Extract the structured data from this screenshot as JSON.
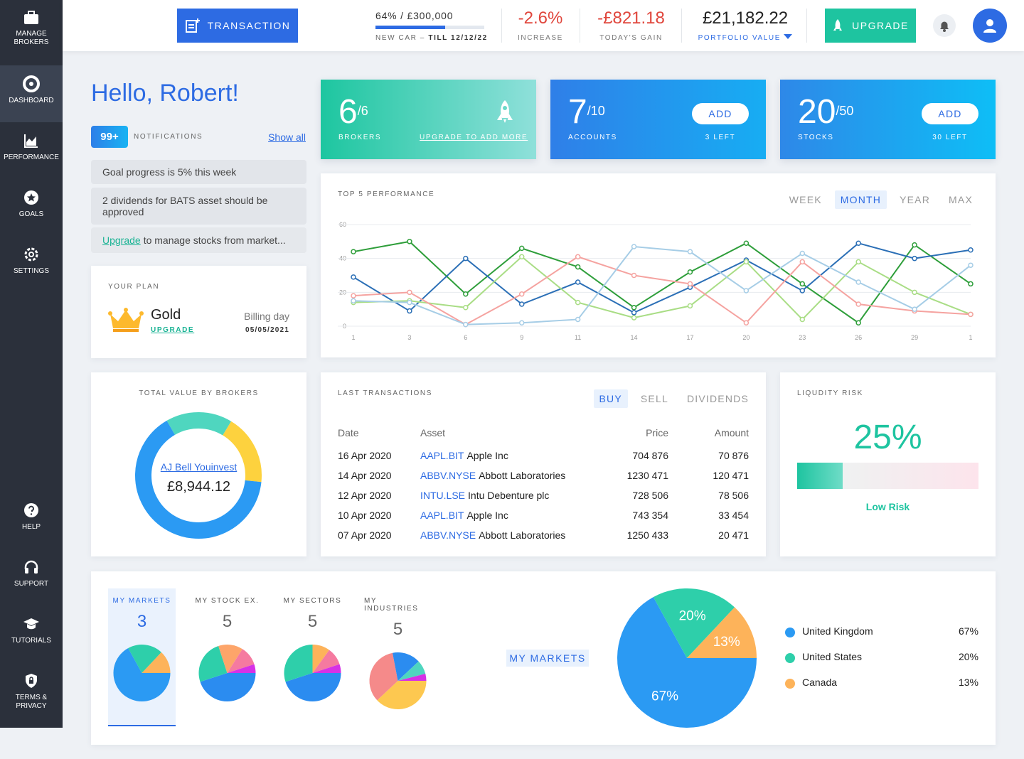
{
  "sidebar": {
    "items": [
      "MANAGE BROKERS",
      "DASHBOARD",
      "PERFORMANCE",
      "GOALS",
      "SETTINGS",
      "HELP",
      "SUPPORT",
      "TUTORIALS",
      "TERMS & PRIVACY"
    ],
    "active": 1
  },
  "topbar": {
    "transaction_button": "TRANSACTION",
    "goal": {
      "progress": 64,
      "progress_label": "64%",
      "target": "/ £300,000",
      "name": "NEW CAR –",
      "deadline": "TILL 12/12/22"
    },
    "stats": [
      {
        "value": "-2.6%",
        "label": "INCREASE"
      },
      {
        "value": "-£821.18",
        "label": "TODAY'S GAIN"
      },
      {
        "value": "£21,182.22",
        "label": "PORTFOLIO VALUE"
      }
    ],
    "upgrade_button": "UPGRADE"
  },
  "greeting": "Hello, Robert!",
  "notifications": {
    "badge": "99+",
    "title": "NOTIFICATIONS",
    "show_all": "Show all",
    "items": [
      "Goal progress is 5% this week",
      "2 dividends for BATS asset should be approved"
    ],
    "upgrade_item": {
      "link": "Upgrade",
      "text": "to manage stocks from market..."
    }
  },
  "plan": {
    "title": "YOUR PLAN",
    "name": "Gold",
    "upgrade": "UPGRADE",
    "billing_label": "Billing day",
    "billing_date": "05/05/2021"
  },
  "cards": [
    {
      "value": "6",
      "max": "/6",
      "label": "BROKERS",
      "action": "UPGRADE TO ADD MORE"
    },
    {
      "value": "7",
      "max": "/10",
      "label": "ACCOUNTS",
      "button": "ADD",
      "action": "3 LEFT"
    },
    {
      "value": "20",
      "max": "/50",
      "label": "STOCKS",
      "button": "ADD",
      "action": "30 LEFT"
    }
  ],
  "performance": {
    "title": "TOP 5 PERFORMANCE",
    "tabs": [
      "WEEK",
      "MONTH",
      "YEAR",
      "MAX"
    ],
    "active_tab": 1,
    "chart": {
      "type": "line",
      "categories": [
        "1",
        "3",
        "6",
        "9",
        "11",
        "14",
        "17",
        "20",
        "23",
        "26",
        "29",
        "1"
      ],
      "ylim": [
        0,
        60
      ],
      "yticks": [
        0,
        20,
        40,
        60
      ],
      "grid": true,
      "series": [
        {
          "color": "#2e9e3a",
          "values": [
            44,
            50,
            19,
            46,
            35,
            11,
            32,
            49,
            25,
            2,
            48,
            25
          ]
        },
        {
          "color": "#2b6fb6",
          "values": [
            29,
            9,
            40,
            13,
            26,
            8,
            23,
            39,
            21,
            49,
            40,
            45
          ]
        },
        {
          "color": "#a9dd85",
          "values": [
            14,
            15,
            11,
            41,
            14,
            5,
            12,
            38,
            4,
            38,
            20,
            7
          ]
        },
        {
          "color": "#f5a3a0",
          "values": [
            18,
            20,
            1,
            19,
            41,
            30,
            25,
            2,
            38,
            13,
            9,
            7
          ]
        },
        {
          "color": "#a6cde6",
          "values": [
            15,
            14,
            1,
            2,
            4,
            47,
            44,
            21,
            43,
            26,
            10,
            36
          ]
        }
      ]
    }
  },
  "brokers": {
    "title": "TOTAL VALUE BY BROKERS",
    "center_name": "AJ Bell Youinvest",
    "center_value": "£8,944.12",
    "chart": {
      "type": "donut",
      "values": [
        17,
        18,
        65
      ],
      "colors": [
        "#4fd6bf",
        "#fdd23e",
        "#2b9af3"
      ]
    }
  },
  "transactions": {
    "title": "LAST TRANSACTIONS",
    "tabs": [
      "BUY",
      "SELL",
      "DIVIDENDS"
    ],
    "active_tab": 0,
    "columns": [
      "Date",
      "Asset",
      "Price",
      "Amount"
    ],
    "rows": [
      [
        "16 Apr 2020",
        "AAPL.BIT",
        "Apple Inc",
        "704 876",
        "70 876"
      ],
      [
        "14 Apr 2020",
        "ABBV.NYSE",
        "Abbott Laboratories",
        "1230 471",
        "120 471"
      ],
      [
        "12 Apr 2020",
        "INTU.LSE",
        "Intu Debenture plc",
        "728 506",
        "78 506"
      ],
      [
        "10 Apr 2020",
        "AAPL.BIT",
        "Apple Inc",
        "743 354",
        "33 454"
      ],
      [
        "07 Apr 2020",
        "ABBV.NYSE",
        "Abbott Laboratories",
        "1250 433",
        "20 471"
      ]
    ]
  },
  "liquidity": {
    "title": "LIQUDITY RISK",
    "value": 25,
    "value_label": "25%",
    "level": "Low Risk"
  },
  "markets": {
    "tabs": [
      {
        "label": "MY MARKETS",
        "count": 3,
        "chart": {
          "type": "pie",
          "values": [
            67,
            20,
            13
          ],
          "colors": [
            "#2b9af3",
            "#2ecfaa",
            "#fdb35a"
          ]
        }
      },
      {
        "label": "MY STOCK EX.",
        "count": 5,
        "chart": {
          "type": "pie",
          "values": [
            45,
            25,
            14,
            11,
            5
          ],
          "colors": [
            "#2b8cf0",
            "#2ecfaa",
            "#fda56a",
            "#f57aa0",
            "#d631e6"
          ]
        }
      },
      {
        "label": "MY SECTORS",
        "count": 5,
        "chart": {
          "type": "pie",
          "values": [
            45,
            30,
            10,
            10,
            5
          ],
          "colors": [
            "#2b8cf0",
            "#2ecfaa",
            "#fdb35a",
            "#f57aa0",
            "#d631e6"
          ]
        }
      },
      {
        "label": "MY INDUSTRIES",
        "count": 5,
        "chart": {
          "type": "pie",
          "values": [
            38,
            34,
            16,
            8,
            4
          ],
          "colors": [
            "#fdc850",
            "#f58a8a",
            "#2b8cf0",
            "#4fd6bf",
            "#d631e6"
          ]
        }
      }
    ],
    "active_tab": 0,
    "selected_label": "MY MARKETS",
    "chart": {
      "type": "pie",
      "categories": [
        "United Kingdom",
        "United States",
        "Canada"
      ],
      "values": [
        67,
        20,
        13
      ],
      "value_labels": [
        "67%",
        "20%",
        "13%"
      ],
      "colors": [
        "#2b9af3",
        "#2ecfaa",
        "#fdb35a"
      ]
    }
  }
}
